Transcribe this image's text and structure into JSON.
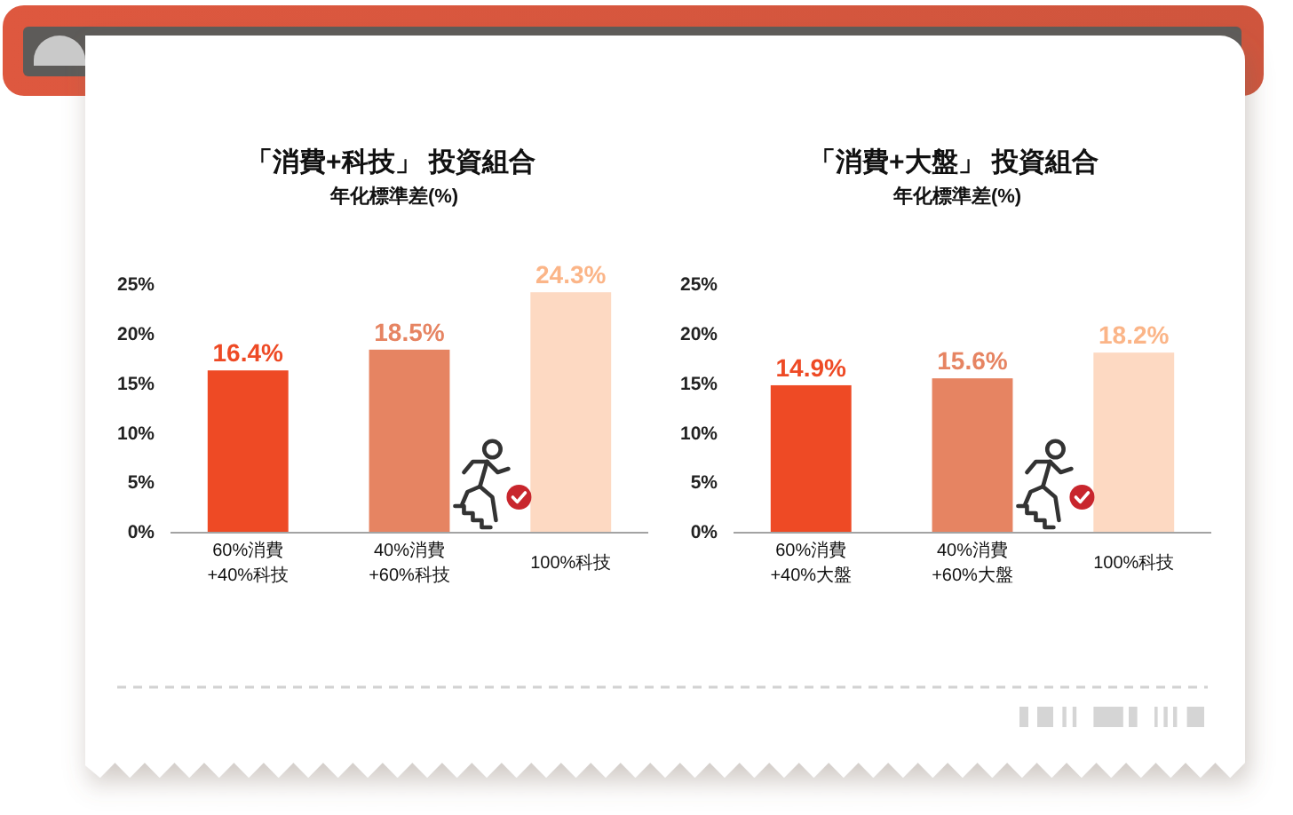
{
  "chart_data": [
    {
      "type": "bar",
      "title": "「消費+科技」 投資組合",
      "subtitle": "年化標準差(%)",
      "categories": [
        "60%消費\n+40%科技",
        "40%消費\n+60%科技",
        "100%科技"
      ],
      "values": [
        16.4,
        18.5,
        24.3
      ],
      "colors": [
        "#ee4a25",
        "#e68462",
        "#fdd9c2"
      ],
      "value_labels": [
        "16.4%",
        "18.5%",
        "24.3%"
      ],
      "ylim": [
        0,
        25
      ],
      "yticks": [
        {
          "value": 0,
          "label": "0%"
        },
        {
          "value": 5,
          "label": "5%"
        },
        {
          "value": 10,
          "label": "10%"
        },
        {
          "value": 15,
          "label": "15%"
        },
        {
          "value": 20,
          "label": "20%"
        },
        {
          "value": 25,
          "label": "25%"
        }
      ]
    },
    {
      "type": "bar",
      "title": "「消費+大盤」 投資組合",
      "subtitle": "年化標準差(%)",
      "categories": [
        "60%消費\n+40%大盤",
        "40%消費\n+60%大盤",
        "100%科技"
      ],
      "values": [
        14.9,
        15.6,
        18.2
      ],
      "colors": [
        "#ee4a25",
        "#e68462",
        "#fdd9c2"
      ],
      "value_labels": [
        "14.9%",
        "15.6%",
        "18.2%"
      ],
      "ylim": [
        0,
        25
      ],
      "yticks": [
        {
          "value": 0,
          "label": "0%"
        },
        {
          "value": 5,
          "label": "5%"
        },
        {
          "value": 10,
          "label": "10%"
        },
        {
          "value": 15,
          "label": "15%"
        },
        {
          "value": 20,
          "label": "20%"
        },
        {
          "value": 25,
          "label": "25%"
        }
      ]
    }
  ]
}
